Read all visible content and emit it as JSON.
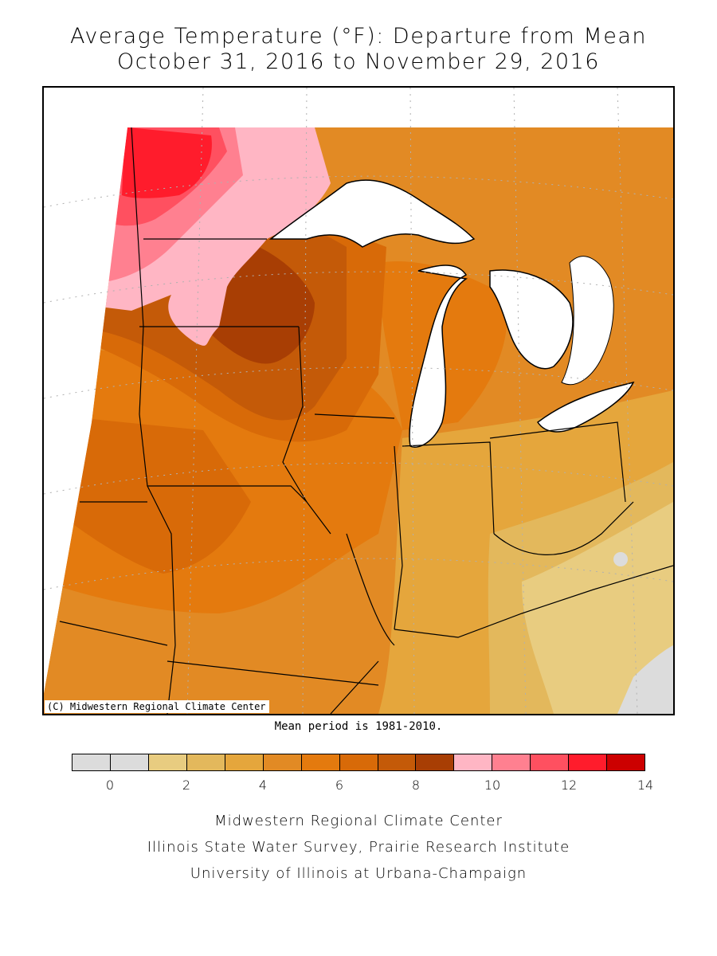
{
  "header": {
    "title_line1": "Average Temperature (°F): Departure from Mean",
    "title_line2": "October 31, 2016 to November 29, 2016"
  },
  "map": {
    "copyright": "(C) Midwestern Regional Climate Center",
    "mean_period": "Mean period is 1981-2010."
  },
  "legend": {
    "bins": [
      {
        "from": -1,
        "to": 0,
        "color": "#dcdcdc"
      },
      {
        "from": 0,
        "to": 1,
        "color": "#dcdcdc"
      },
      {
        "from": 1,
        "to": 2,
        "color": "#e8cc80"
      },
      {
        "from": 2,
        "to": 3,
        "color": "#e3b85c"
      },
      {
        "from": 3,
        "to": 4,
        "color": "#e5a63c"
      },
      {
        "from": 4,
        "to": 5,
        "color": "#e28a24"
      },
      {
        "from": 5,
        "to": 6,
        "color": "#e47a0e"
      },
      {
        "from": 6,
        "to": 7,
        "color": "#d86a08"
      },
      {
        "from": 7,
        "to": 8,
        "color": "#c45a08"
      },
      {
        "from": 8,
        "to": 9,
        "color": "#a83e04"
      },
      {
        "from": 9,
        "to": 10,
        "color": "#ffb6c4"
      },
      {
        "from": 10,
        "to": 11,
        "color": "#ff8090"
      },
      {
        "from": 11,
        "to": 12,
        "color": "#ff5060"
      },
      {
        "from": 12,
        "to": 13,
        "color": "#ff1c2c"
      },
      {
        "from": 13,
        "to": 14,
        "color": "#cc0000"
      }
    ],
    "tick_labels": [
      "0",
      "2",
      "4",
      "6",
      "8",
      "10",
      "12",
      "14"
    ]
  },
  "footer": {
    "line1": "Midwestern Regional Climate Center",
    "line2": "Illinois State Water Survey, Prairie Research Institute",
    "line3": "University of Illinois at Urbana-Champaign"
  }
}
